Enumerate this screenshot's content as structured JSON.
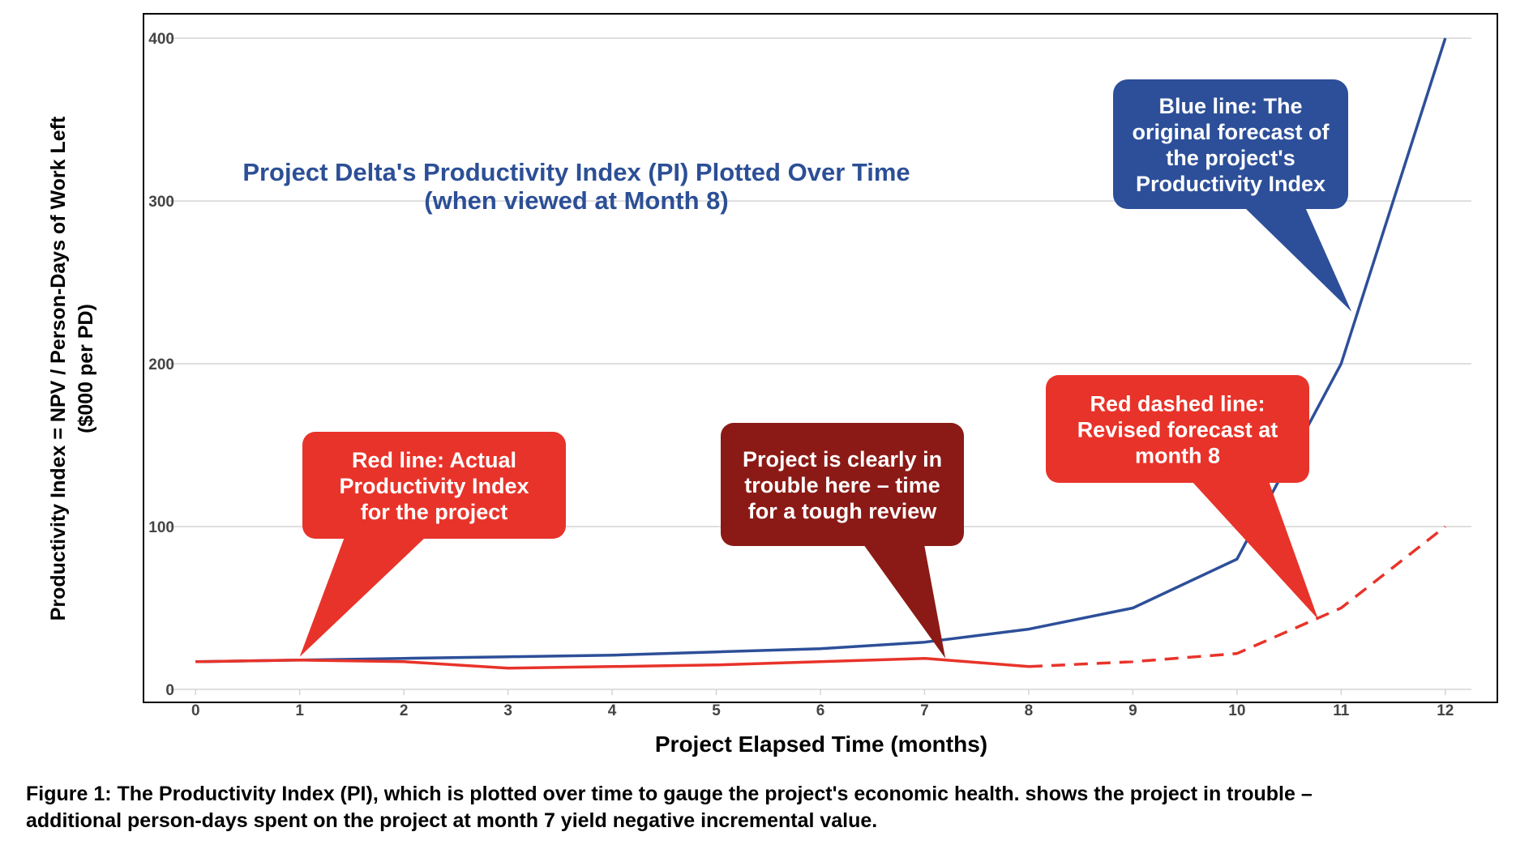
{
  "chart_data": {
    "type": "line",
    "title": [
      "Project Delta's Productivity Index (PI)  Plotted Over Time",
      "(when viewed at Month 8)"
    ],
    "xlabel": "Project Elapsed Time (months)",
    "ylabel": [
      "Productivity Index = NPV / Person-Days of Work Left",
      "($000 per PD)"
    ],
    "x": [
      0,
      1,
      2,
      3,
      4,
      5,
      6,
      7,
      8,
      9,
      10,
      11,
      12
    ],
    "x_tick_labels": [
      "0",
      "1",
      "2",
      "3",
      "4",
      "5",
      "6",
      "7",
      "8",
      "9",
      "10",
      "11",
      "12"
    ],
    "xlim": [
      -0.5,
      12.5
    ],
    "ylim": [
      -8,
      415
    ],
    "y_ticks": [
      0,
      100,
      200,
      300,
      400
    ],
    "y_tick_labels": [
      "0",
      "100",
      "200",
      "300",
      "400"
    ],
    "grid": "horizontal",
    "series": [
      {
        "color": "#2d4f99",
        "style": "solid",
        "x": [
          0,
          1,
          2,
          3,
          4,
          5,
          6,
          7,
          8,
          9,
          10,
          11,
          12
        ],
        "values": [
          17,
          18,
          19,
          20,
          21,
          23,
          25,
          29,
          37,
          50,
          80,
          200,
          400
        ]
      },
      {
        "color": "#e8332a",
        "style": "solid",
        "x": [
          0,
          1,
          2,
          3,
          4,
          5,
          6,
          7,
          8
        ],
        "values": [
          17,
          18,
          17,
          13,
          14,
          15,
          17,
          19,
          14
        ]
      },
      {
        "color": "#e8332a",
        "style": "dashed",
        "x": [
          8,
          9,
          10,
          11,
          12
        ],
        "values": [
          14,
          17,
          22,
          50,
          100
        ]
      }
    ],
    "annotations": [
      {
        "id": "blue",
        "color": "#2d4f99",
        "lines": [
          "Blue line: The",
          "original forecast of",
          "the project's",
          "Productivity Index"
        ],
        "point": [
          11.1,
          232
        ]
      },
      {
        "id": "red-actual",
        "color": "#e8332a",
        "lines": [
          "Red line: Actual",
          "Productivity Index",
          "for the project"
        ],
        "point": [
          1.0,
          20
        ]
      },
      {
        "id": "trouble",
        "color": "#8b1a16",
        "lines": [
          "Project is clearly in",
          "trouble here – time",
          "for a tough review"
        ],
        "point": [
          7.2,
          19
        ]
      },
      {
        "id": "red-dashed",
        "color": "#e8332a",
        "lines": [
          "Red dashed line:",
          "Revised forecast at",
          "month 8"
        ],
        "point": [
          10.78,
          43
        ]
      }
    ]
  },
  "caption": [
    "Figure 1: The Productivity Index (PI), which is plotted over time to gauge the project's economic health. shows the project in trouble –",
    "additional person-days spent on the project at month 7 yield negative incremental value."
  ]
}
